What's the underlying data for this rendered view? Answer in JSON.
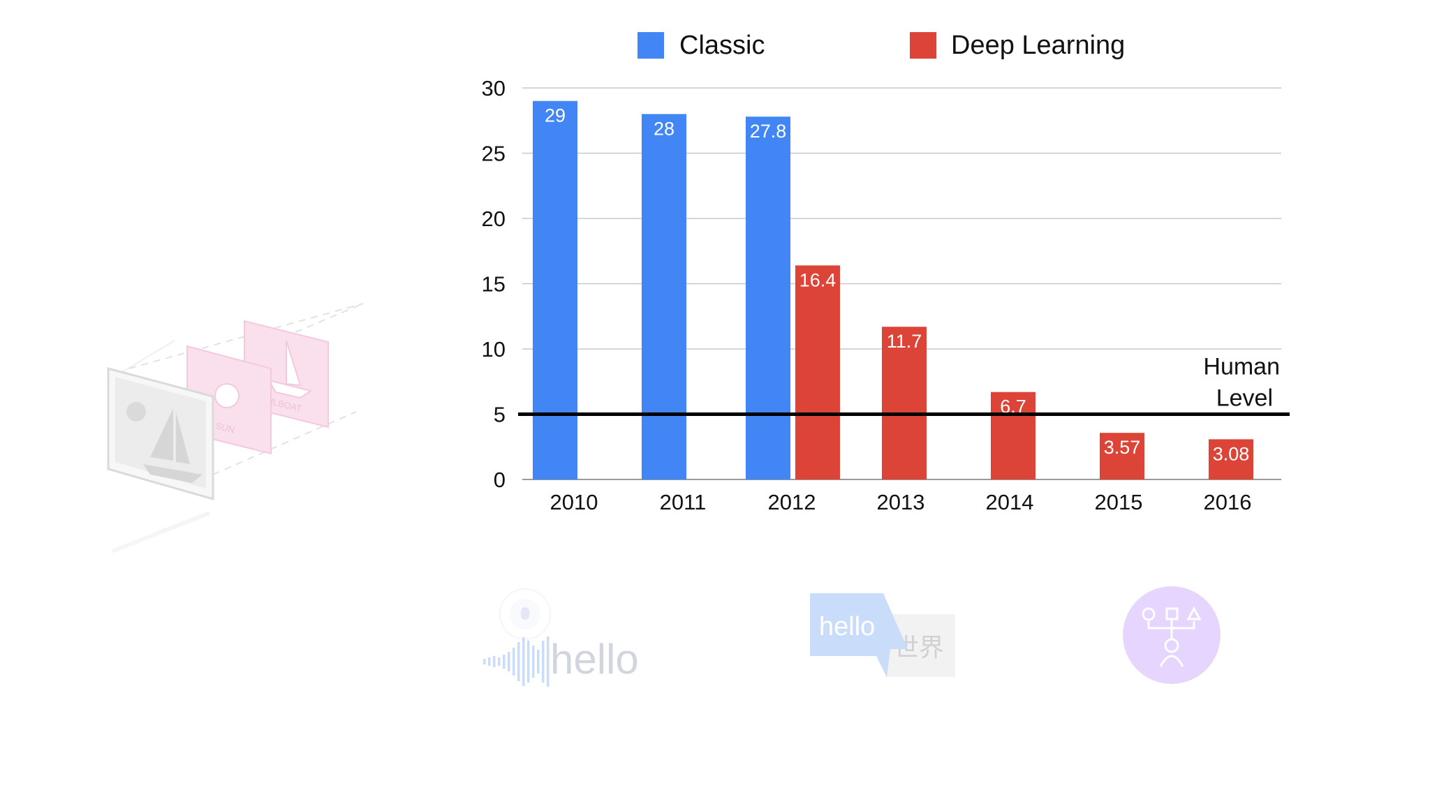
{
  "chart_data": {
    "type": "bar",
    "categories": [
      "2010",
      "2011",
      "2012",
      "2013",
      "2014",
      "2015",
      "2016"
    ],
    "series": [
      {
        "name": "Classic",
        "color": "#4285f4",
        "values": [
          29,
          28,
          27.8,
          null,
          null,
          null,
          null
        ]
      },
      {
        "name": "Deep Learning",
        "color": "#db4437",
        "values": [
          null,
          null,
          16.4,
          11.7,
          6.7,
          3.57,
          3.08
        ]
      }
    ],
    "data_labels": {
      "Classic": [
        "29",
        "28",
        "27.8",
        null,
        null,
        null,
        null
      ],
      "Deep Learning": [
        null,
        null,
        "16.4",
        "11.7",
        "6.7",
        "3.57",
        "3.08"
      ]
    },
    "yticks": [
      0,
      5,
      10,
      15,
      20,
      25,
      30
    ],
    "ylim": [
      0,
      30
    ],
    "grid": true,
    "legend_position": "top",
    "reference_line": {
      "value": 5,
      "label_line1": "Human",
      "label_line2": "Level"
    }
  },
  "decor": {
    "image_card_labels": {
      "sun": "SUN",
      "sailboat": "SAILBOAT"
    },
    "speech_text": "hello",
    "translate_from": "hello",
    "translate_to": "世界",
    "icons": [
      "image-recognition-icon",
      "speech-recognition-icon",
      "translation-icon",
      "classification-icon"
    ]
  }
}
